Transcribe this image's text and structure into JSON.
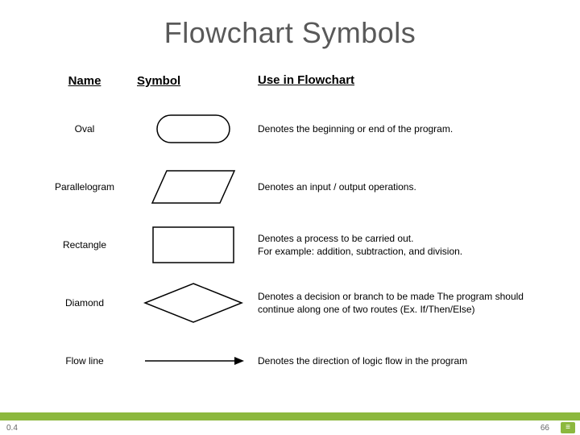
{
  "title": "Flowchart Symbols",
  "headers": {
    "name": "Name",
    "symbol": "Symbol",
    "use": "Use in Flowchart"
  },
  "rows": [
    {
      "name": "Oval",
      "use": "Denotes the beginning or end of the program."
    },
    {
      "name": "Parallelogram",
      "use": "Denotes an input / output operations."
    },
    {
      "name": "Rectangle",
      "use": "Denotes a process to be carried out.\nFor example: addition, subtraction, and division."
    },
    {
      "name": "Diamond",
      "use": "Denotes a decision or branch to be made The program should continue along one of two routes (Ex. If/Then/Else)"
    },
    {
      "name": "Flow line",
      "use": "Denotes the direction of logic flow in the program"
    }
  ],
  "symbols": {
    "stroke": "#000000",
    "stroke_width": 1.5,
    "oval": {
      "w": 90,
      "h": 34,
      "rx": 17
    },
    "parallelogram": {
      "w": 100,
      "h": 40,
      "skew": 18
    },
    "rectangle": {
      "w": 100,
      "h": 44
    },
    "diamond": {
      "w": 120,
      "h": 48
    },
    "arrow": {
      "w": 120,
      "head": 9
    }
  },
  "footer": {
    "label": "0.4",
    "page": "66",
    "bar_color": "#8cb83e"
  },
  "fonts": {
    "title_size": 36,
    "header_size": 15,
    "body_size": 12
  }
}
